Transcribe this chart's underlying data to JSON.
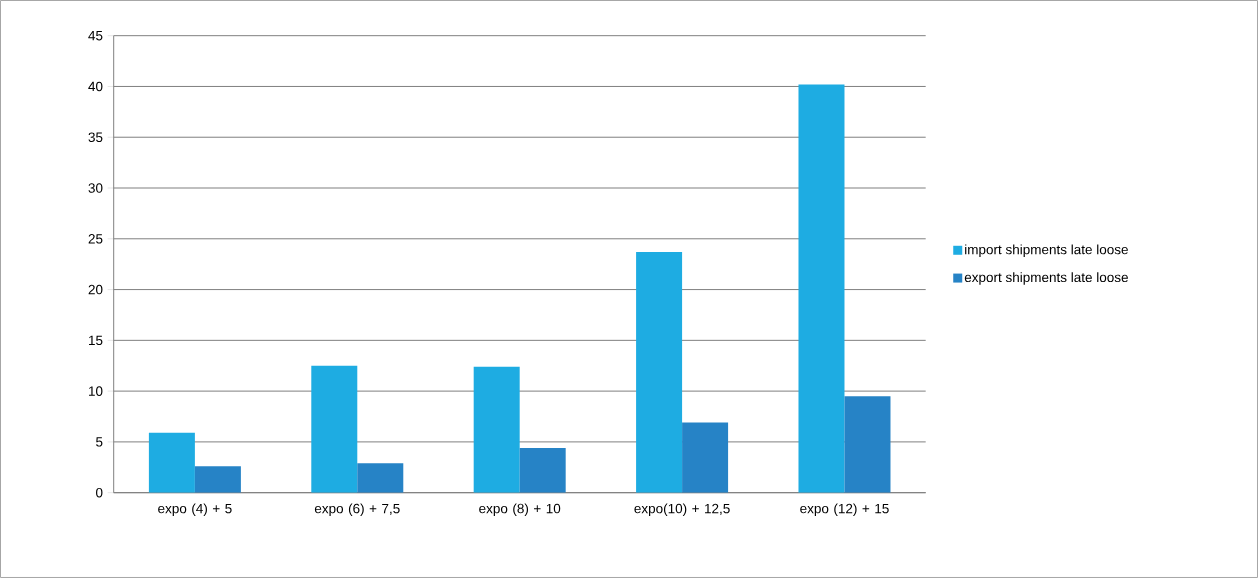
{
  "chart_data": {
    "type": "bar",
    "categories": [
      "expo (4) + 5",
      "expo (6) + 7,5",
      "expo (8) + 10",
      "expo(10) + 12,5",
      "expo (12) + 15"
    ],
    "series": [
      {
        "name": "import shipments late loose",
        "color": "#1eace2",
        "values": [
          5.9,
          12.5,
          12.4,
          23.7,
          40.2
        ]
      },
      {
        "name": "export shipments late loose",
        "color": "#2683c6",
        "values": [
          2.6,
          2.9,
          4.4,
          6.9,
          9.5
        ]
      }
    ],
    "ylim": [
      0,
      45
    ],
    "yticks": [
      0,
      5,
      10,
      15,
      20,
      25,
      30,
      35,
      40,
      45
    ],
    "grid": "y",
    "legend": "right"
  }
}
